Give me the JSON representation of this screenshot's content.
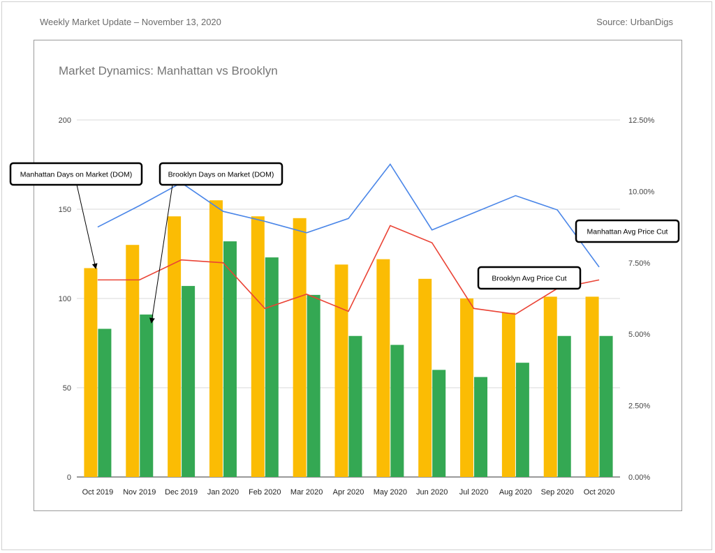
{
  "header": {
    "left_text": "Weekly Market Update – November 13, 2020",
    "right_text": "Source: UrbanDigs"
  },
  "chart_data": {
    "type": "bar",
    "title": "Market Dynamics: Manhattan vs Brooklyn",
    "categories": [
      "Oct 2019",
      "Nov 2019",
      "Dec 2019",
      "Jan 2020",
      "Feb 2020",
      "Mar 2020",
      "Apr 2020",
      "May 2020",
      "Jun 2020",
      "Jul 2020",
      "Aug 2020",
      "Sep 2020",
      "Oct 2020"
    ],
    "y_left": {
      "ticks": [
        "0",
        "50",
        "100",
        "150",
        "200"
      ],
      "ylim": [
        0,
        200
      ]
    },
    "y_right": {
      "ticks": [
        "0.00%",
        "2.50%",
        "5.00%",
        "7.50%",
        "10.00%",
        "12.50%"
      ],
      "ylim": [
        0,
        12.5
      ]
    },
    "grid": true,
    "series": [
      {
        "name": "Manhattan Days on Market (DOM)",
        "type": "bar",
        "axis": "left",
        "color": "#FBBC04",
        "values": [
          117,
          130,
          146,
          155,
          146,
          145,
          119,
          122,
          111,
          100,
          92,
          101,
          101
        ]
      },
      {
        "name": "Brooklyn Days on Market (DOM)",
        "type": "bar",
        "axis": "left",
        "color": "#34A853",
        "values": [
          83,
          91,
          107,
          132,
          123,
          102,
          79,
          74,
          60,
          56,
          64,
          79,
          79
        ]
      },
      {
        "name": "Manhattan Avg Price Cut",
        "type": "line",
        "axis": "right",
        "color": "#4A86E8",
        "values": [
          8.75,
          9.5,
          10.3,
          9.3,
          8.95,
          8.55,
          9.05,
          10.95,
          8.65,
          9.25,
          9.85,
          9.35,
          7.35
        ]
      },
      {
        "name": "Brooklyn Avg Price Cut",
        "type": "line",
        "axis": "right",
        "color": "#EA4335",
        "values": [
          6.9,
          6.9,
          7.6,
          7.5,
          5.9,
          6.4,
          5.8,
          8.8,
          8.2,
          5.9,
          5.7,
          6.6,
          6.9
        ]
      }
    ],
    "annotations": [
      {
        "text": "Manhattan Days on Market (DOM)",
        "series_index": 0,
        "category_index": 0,
        "arrow": true
      },
      {
        "text": "Brooklyn Days on Market (DOM)",
        "series_index": 1,
        "category_index": 1,
        "arrow": true
      },
      {
        "text": "Brooklyn Avg Price Cut",
        "series_index": 3,
        "category_index": 11,
        "arrow": false
      },
      {
        "text": "Manhattan Avg Price Cut",
        "series_index": 2,
        "category_index": 12,
        "arrow": false
      }
    ]
  }
}
